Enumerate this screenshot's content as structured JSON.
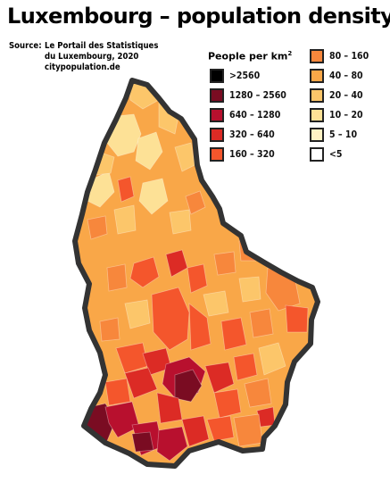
{
  "title": "Luxembourg – population density",
  "source": {
    "label": "Source:",
    "lines": [
      "Le Portail des Statistiques",
      "du Luxembourg, 2020",
      "citypopulation.de"
    ]
  },
  "legend": {
    "title": "People per km",
    "title_sup": "2",
    "items": [
      {
        "label": ">2560",
        "color": "#000000"
      },
      {
        "label": "1280 – 2560",
        "color": "#7a0c22"
      },
      {
        "label": "640 – 1280",
        "color": "#b8102e"
      },
      {
        "label": "320 – 640",
        "color": "#dc2b25"
      },
      {
        "label": "160 – 320",
        "color": "#f4562c"
      },
      {
        "label": "80 – 160",
        "color": "#f7873c"
      },
      {
        "label": "40 – 80",
        "color": "#f9a748"
      },
      {
        "label": "20 – 40",
        "color": "#fcc66a"
      },
      {
        "label": "10 – 20",
        "color": "#fde196"
      },
      {
        "label": "5 – 10",
        "color": "#fff2c4"
      },
      {
        "label": "<5",
        "color": "#ffffff"
      }
    ]
  }
}
